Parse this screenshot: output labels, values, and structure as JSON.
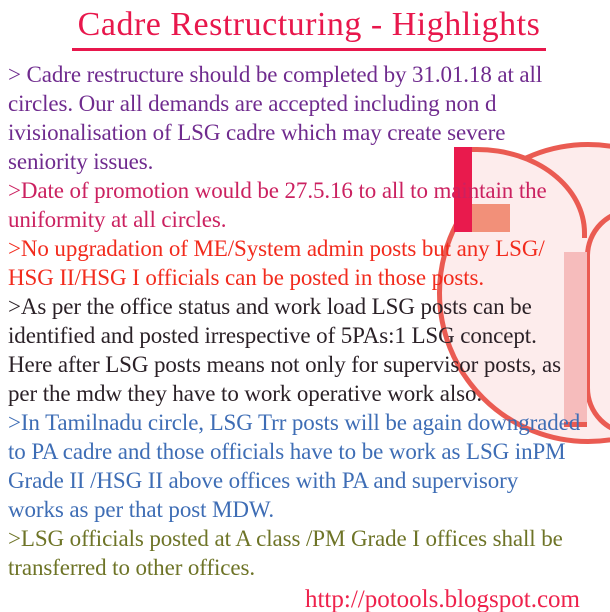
{
  "title": {
    "text": "Cadre Restructuring - Highlights",
    "color": "#e8174c"
  },
  "paragraphs": [
    {
      "color": "#6f2b8e",
      "lines": [
        "> Cadre restructure should be completed by 31.01.18 at all",
        "circles. Our all demands are accepted including non d",
        "ivisionalisation of LSG cadre which may create severe",
        "seniority issues."
      ]
    },
    {
      "color": "#cb2160",
      "lines": [
        ">Date of promotion would be 27.5.16 to all to maintain the",
        "uniformity at all circles."
      ]
    },
    {
      "color": "#f22b1d",
      "lines": [
        ">No upgradation of ME/System admin posts but any LSG/",
        "HSG II/HSG I officials can be posted in those posts."
      ]
    },
    {
      "color": "#2b2127",
      "lines": [
        ">As per the office status and work load LSG posts can be",
        "identified and posted irrespective of 5PAs:1 LSG concept.",
        "Here after LSG posts means not only for supervisor posts, as",
        "per the mdw they have to work operative work also."
      ]
    },
    {
      "color": "#3e6db5",
      "lines": [
        ">In Tamilnadu circle, LSG Trr posts will be again downgraded",
        "to PA cadre and those officials have to be work as LSG inPM",
        "Grade II /HSG II above offices with PA and supervisory",
        "works as per that post MDW."
      ]
    },
    {
      "color": "#6e7427",
      "lines": [
        ">LSG officials posted at A class /PM Grade I offices shall be",
        "transferred to other offices."
      ]
    }
  ],
  "footer": {
    "url": "http://potools.blogspot.com",
    "color": "#ee224c"
  },
  "watermark": {
    "name": "potools-logo",
    "fill": "#fdecec",
    "ring": "#ea5b52",
    "stem": "#e91a4d",
    "arm": "#f29079",
    "inner_bar": "#f6bcbc"
  }
}
